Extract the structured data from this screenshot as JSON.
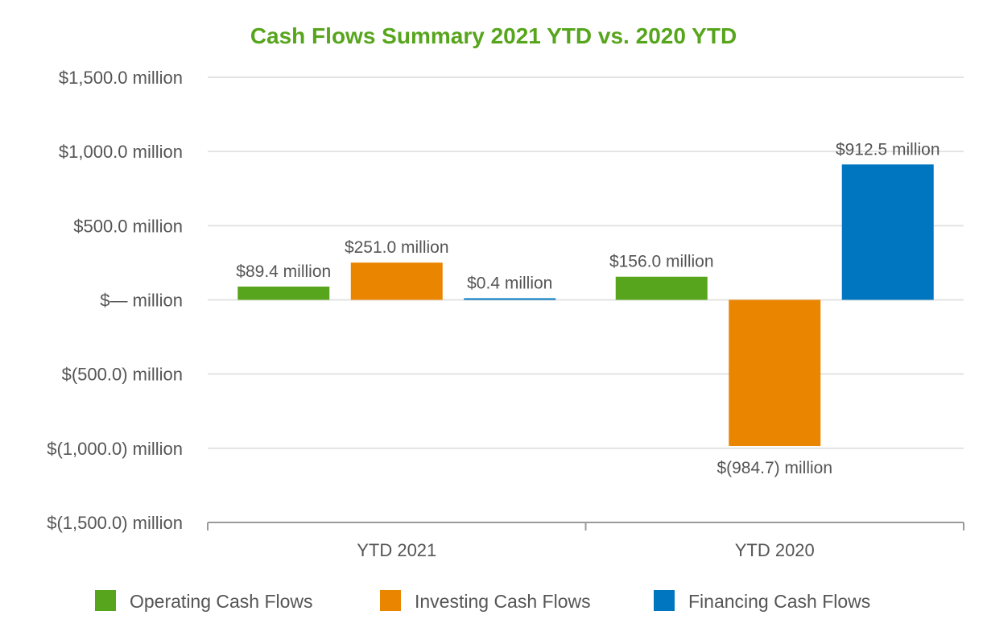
{
  "chart_data": {
    "type": "bar",
    "title": "Cash Flows Summary 2021 YTD vs. 2020 YTD",
    "title_color": "#57a51c",
    "xlabel": "",
    "ylabel": "",
    "categories": [
      "YTD 2021",
      "YTD 2020"
    ],
    "ylim": [
      -1500,
      1500
    ],
    "y_ticks": [
      1500,
      1000,
      500,
      0,
      -500,
      -1000,
      -1500
    ],
    "y_tick_labels": [
      "$1,500.0 million",
      "$1,000.0 million",
      "$500.0 million",
      "$— million",
      "$(500.0) million",
      "$(1,000.0) million",
      "$(1,500.0) million"
    ],
    "grid": true,
    "legend_position": "bottom",
    "series": [
      {
        "name": "Operating Cash Flows",
        "color": "#57a51c",
        "values": [
          89.4,
          156.0
        ],
        "labels": [
          "$89.4 million",
          "$156.0 million"
        ]
      },
      {
        "name": "Investing Cash Flows",
        "color": "#ea8500",
        "values": [
          251.0,
          -984.7
        ],
        "labels": [
          "$251.0 million",
          "$(984.7) million"
        ]
      },
      {
        "name": "Financing Cash Flows",
        "color": "#0076c0",
        "values": [
          0.4,
          912.5
        ],
        "labels": [
          "$0.4 million",
          "$912.5 million"
        ]
      }
    ]
  }
}
